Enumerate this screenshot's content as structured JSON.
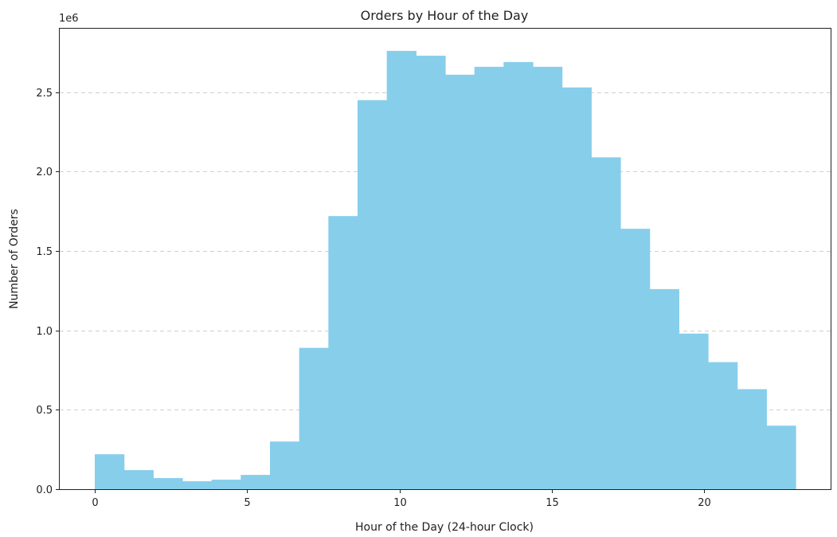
{
  "chart_data": {
    "type": "bar",
    "title": "Orders by Hour of the Day",
    "xlabel": "Hour of the Day (24-hour Clock)",
    "ylabel": "Number of Orders",
    "y_offset_label": "1e6",
    "xlim": [
      -1.15,
      24.15
    ],
    "ylim": [
      0,
      2.9
    ],
    "x_ticks": [
      0,
      5,
      10,
      15,
      20
    ],
    "x_tick_labels": [
      "0",
      "5",
      "10",
      "15",
      "20"
    ],
    "y_ticks": [
      0,
      0.5,
      1.0,
      1.5,
      2.0,
      2.5
    ],
    "y_tick_labels": [
      "0.0",
      "0.5",
      "1.0",
      "1.5",
      "2.0",
      "2.5"
    ],
    "grid": "y-dashed",
    "bin_edges": [
      0,
      0.9583,
      1.9167,
      2.875,
      3.8333,
      4.7917,
      5.75,
      6.7083,
      7.6667,
      8.625,
      9.5833,
      10.5417,
      11.5,
      12.4583,
      13.4167,
      14.375,
      15.3333,
      16.2917,
      17.25,
      18.2083,
      19.1667,
      20.125,
      21.0833,
      22.0417,
      23.0
    ],
    "values": [
      0.22,
      0.12,
      0.07,
      0.05,
      0.06,
      0.09,
      0.3,
      0.89,
      1.72,
      2.45,
      2.76,
      2.73,
      2.61,
      2.66,
      2.69,
      2.66,
      2.53,
      2.09,
      1.64,
      1.26,
      0.98,
      0.8,
      0.63,
      0.4
    ],
    "units_multiplier": 1000000,
    "bar_color": "#87ceeb"
  }
}
